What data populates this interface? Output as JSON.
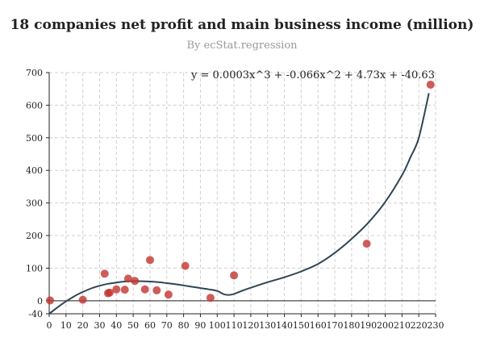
{
  "chart_data": {
    "type": "scatter",
    "title": "18 companies net profit and main business income (million)",
    "subtitle": "By ecStat.regression",
    "xlim": [
      0,
      230
    ],
    "ylim": [
      -40,
      700
    ],
    "x_ticks": [
      0,
      10,
      20,
      30,
      40,
      50,
      60,
      70,
      80,
      90,
      100,
      110,
      120,
      130,
      140,
      150,
      160,
      170,
      180,
      190,
      200,
      210,
      220,
      230
    ],
    "y_ticks": [
      -40,
      0,
      100,
      200,
      300,
      400,
      500,
      600,
      700
    ],
    "grid": true,
    "points": [
      {
        "x": 0.5,
        "y": 1
      },
      {
        "x": 20,
        "y": 3
      },
      {
        "x": 33,
        "y": 83
      },
      {
        "x": 35,
        "y": 23
      },
      {
        "x": 36,
        "y": 25
      },
      {
        "x": 40,
        "y": 35
      },
      {
        "x": 45,
        "y": 34
      },
      {
        "x": 47,
        "y": 68
      },
      {
        "x": 51,
        "y": 61
      },
      {
        "x": 57,
        "y": 35
      },
      {
        "x": 60,
        "y": 125
      },
      {
        "x": 64,
        "y": 32
      },
      {
        "x": 71,
        "y": 19
      },
      {
        "x": 81,
        "y": 107
      },
      {
        "x": 96,
        "y": 9
      },
      {
        "x": 110,
        "y": 78
      },
      {
        "x": 189,
        "y": 175
      },
      {
        "x": 227,
        "y": 663
      }
    ],
    "regression": {
      "label": "y = 0.0003x^3 + -0.066x^2 + 4.73x + -40.63",
      "curve": [
        {
          "x": 0,
          "y": -40
        },
        {
          "x": 5,
          "y": -20
        },
        {
          "x": 10,
          "y": -2
        },
        {
          "x": 15,
          "y": 14
        },
        {
          "x": 20,
          "y": 27
        },
        {
          "x": 25,
          "y": 38
        },
        {
          "x": 30,
          "y": 46
        },
        {
          "x": 35,
          "y": 52
        },
        {
          "x": 40,
          "y": 56
        },
        {
          "x": 45,
          "y": 59
        },
        {
          "x": 50,
          "y": 60
        },
        {
          "x": 55,
          "y": 60
        },
        {
          "x": 60,
          "y": 59
        },
        {
          "x": 65,
          "y": 57
        },
        {
          "x": 70,
          "y": 54
        },
        {
          "x": 75,
          "y": 51
        },
        {
          "x": 80,
          "y": 47
        },
        {
          "x": 85,
          "y": 43
        },
        {
          "x": 90,
          "y": 39
        },
        {
          "x": 95,
          "y": 35
        },
        {
          "x": 100,
          "y": 30
        },
        {
          "x": 104,
          "y": 20
        },
        {
          "x": 107,
          "y": 18
        },
        {
          "x": 110,
          "y": 21
        },
        {
          "x": 115,
          "y": 31
        },
        {
          "x": 120,
          "y": 40
        },
        {
          "x": 130,
          "y": 57
        },
        {
          "x": 140,
          "y": 72
        },
        {
          "x": 150,
          "y": 90
        },
        {
          "x": 160,
          "y": 113
        },
        {
          "x": 170,
          "y": 147
        },
        {
          "x": 180,
          "y": 190
        },
        {
          "x": 190,
          "y": 240
        },
        {
          "x": 200,
          "y": 303
        },
        {
          "x": 210,
          "y": 385
        },
        {
          "x": 215,
          "y": 440
        },
        {
          "x": 220,
          "y": 500
        },
        {
          "x": 226,
          "y": 637
        }
      ]
    }
  }
}
